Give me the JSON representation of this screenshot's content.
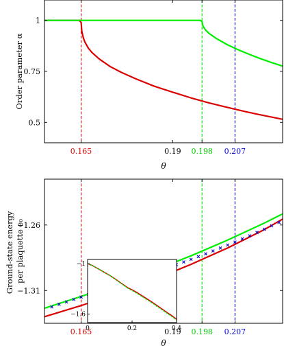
{
  "chart_data": [
    {
      "type": "line",
      "ylabel": "Order parameter α",
      "xlabel": "θ",
      "xlim": [
        0.155,
        0.22
      ],
      "ylim": [
        0.4,
        1.1
      ],
      "yticks": [
        0.5,
        0.75,
        1
      ],
      "ytick_labels": [
        "0.5",
        "0.75",
        "1"
      ],
      "xticks": [
        0.165,
        0.19,
        0.198,
        0.207
      ],
      "xtick_labels": [
        "0.165",
        "0.19",
        "0.198",
        "0.207"
      ],
      "xtick_colors": [
        "#dd0000",
        "#000000",
        "#00cc00",
        "#0000cc"
      ],
      "vlines": [
        {
          "x": 0.165,
          "color": "#ee0000"
        },
        {
          "x": 0.198,
          "color": "#00dd00"
        },
        {
          "x": 0.207,
          "color": "#0000cc"
        }
      ],
      "series": [
        {
          "color": "#dd0000",
          "x": [
            0.155,
            0.1645,
            0.165,
            0.1652,
            0.1656,
            0.166,
            0.167,
            0.168,
            0.17,
            0.173,
            0.176,
            0.18,
            0.185,
            0.19,
            0.195,
            0.2,
            0.205,
            0.21,
            0.215,
            0.22
          ],
          "y": [
            1,
            1,
            0.99,
            0.945,
            0.915,
            0.895,
            0.863,
            0.842,
            0.81,
            0.773,
            0.745,
            0.713,
            0.677,
            0.648,
            0.62,
            0.595,
            0.573,
            0.552,
            0.533,
            0.515
          ]
        },
        {
          "color": "#00ee00",
          "x": [
            0.155,
            0.1975,
            0.198,
            0.1982,
            0.1986,
            0.199,
            0.2,
            0.202,
            0.205,
            0.208,
            0.211,
            0.214,
            0.217,
            0.22
          ],
          "y": [
            1,
            1,
            0.995,
            0.975,
            0.962,
            0.952,
            0.935,
            0.91,
            0.88,
            0.855,
            0.833,
            0.812,
            0.793,
            0.776
          ]
        }
      ]
    },
    {
      "type": "line",
      "ylabel": "Ground-state energy per plaquette e₀",
      "xlabel": "θ",
      "xlim": [
        0.155,
        0.22
      ],
      "ylim": [
        -1.335,
        -1.225
      ],
      "yticks": [
        -1.31,
        -1.26
      ],
      "ytick_labels": [
        "−1.31",
        "−1.26"
      ],
      "xticks": [
        0.165,
        0.19,
        0.198,
        0.207
      ],
      "xtick_labels": [
        "0.165",
        "0.19",
        "0.198",
        "0.207"
      ],
      "xtick_colors": [
        "#dd0000",
        "#000000",
        "#00cc00",
        "#0000cc"
      ],
      "vlines": [
        {
          "x": 0.165,
          "color": "#ee0000"
        },
        {
          "x": 0.198,
          "color": "#00dd00"
        },
        {
          "x": 0.207,
          "color": "#0000cc"
        }
      ],
      "series": [
        {
          "color": "#dd0000",
          "x": [
            0.155,
            0.165,
            0.175,
            0.185,
            0.195,
            0.205,
            0.215,
            0.22
          ],
          "y": [
            -1.33,
            -1.3215,
            -1.312,
            -1.3015,
            -1.29,
            -1.2775,
            -1.2635,
            -1.2555
          ]
        },
        {
          "color": "#00ee00",
          "x": [
            0.155,
            0.165,
            0.175,
            0.185,
            0.195,
            0.205,
            0.215,
            0.22
          ],
          "y": [
            -1.3235,
            -1.3145,
            -1.305,
            -1.2945,
            -1.2835,
            -1.2715,
            -1.2585,
            -1.2515
          ]
        },
        {
          "color": "#0000cc",
          "type": "scatter",
          "marker": "x",
          "x": [
            0.157,
            0.159,
            0.161,
            0.163,
            0.165,
            0.167,
            0.169,
            0.171,
            0.173,
            0.175,
            0.177,
            0.179,
            0.181,
            0.183,
            0.185,
            0.187,
            0.189,
            0.191,
            0.193,
            0.195,
            0.197,
            0.199,
            0.201,
            0.203,
            0.205,
            0.207,
            0.209,
            0.211,
            0.213,
            0.215,
            0.217,
            0.219
          ],
          "y": [
            -1.3225,
            -1.3205,
            -1.3187,
            -1.3168,
            -1.315,
            -1.3131,
            -1.3113,
            -1.3095,
            -1.3076,
            -1.3058,
            -1.3039,
            -1.302,
            -1.3001,
            -1.2982,
            -1.2963,
            -1.2943,
            -1.2923,
            -1.2903,
            -1.2882,
            -1.2862,
            -1.2841,
            -1.282,
            -1.2798,
            -1.2776,
            -1.2753,
            -1.273,
            -1.2706,
            -1.2682,
            -1.2657,
            -1.2632,
            -1.2606,
            -1.258
          ]
        }
      ],
      "inset": {
        "xlim": [
          0,
          0.4
        ],
        "ylim": [
          -1.7,
          -0.95
        ],
        "yticks": [
          -1,
          -1.6
        ],
        "ytick_labels": [
          "−1",
          "−1.6"
        ],
        "xticks": [
          0,
          0.2,
          0.4
        ],
        "xtick_labels": [
          "0",
          "0.2",
          "0.4"
        ],
        "series": [
          {
            "color": "#dd0000",
            "x": [
              0,
              0.02,
              0.05,
              0.08,
              0.1,
              0.12,
              0.15,
              0.18,
              0.2,
              0.22,
              0.25,
              0.28,
              0.3,
              0.33,
              0.36,
              0.38,
              0.4
            ],
            "y": [
              -1.0,
              -1.02,
              -1.065,
              -1.11,
              -1.14,
              -1.175,
              -1.23,
              -1.285,
              -1.31,
              -1.34,
              -1.39,
              -1.44,
              -1.475,
              -1.53,
              -1.585,
              -1.62,
              -1.66
            ]
          },
          {
            "color": "#00ee00",
            "x": [
              0,
              0.02,
              0.05,
              0.08,
              0.1,
              0.12,
              0.15,
              0.18,
              0.2,
              0.22,
              0.25,
              0.28,
              0.3,
              0.33,
              0.36,
              0.38,
              0.4
            ],
            "y": [
              -1.0,
              -1.02,
              -1.065,
              -1.11,
              -1.14,
              -1.175,
              -1.235,
              -1.29,
              -1.32,
              -1.35,
              -1.4,
              -1.45,
              -1.485,
              -1.54,
              -1.595,
              -1.63,
              -1.67
            ]
          }
        ]
      }
    }
  ]
}
